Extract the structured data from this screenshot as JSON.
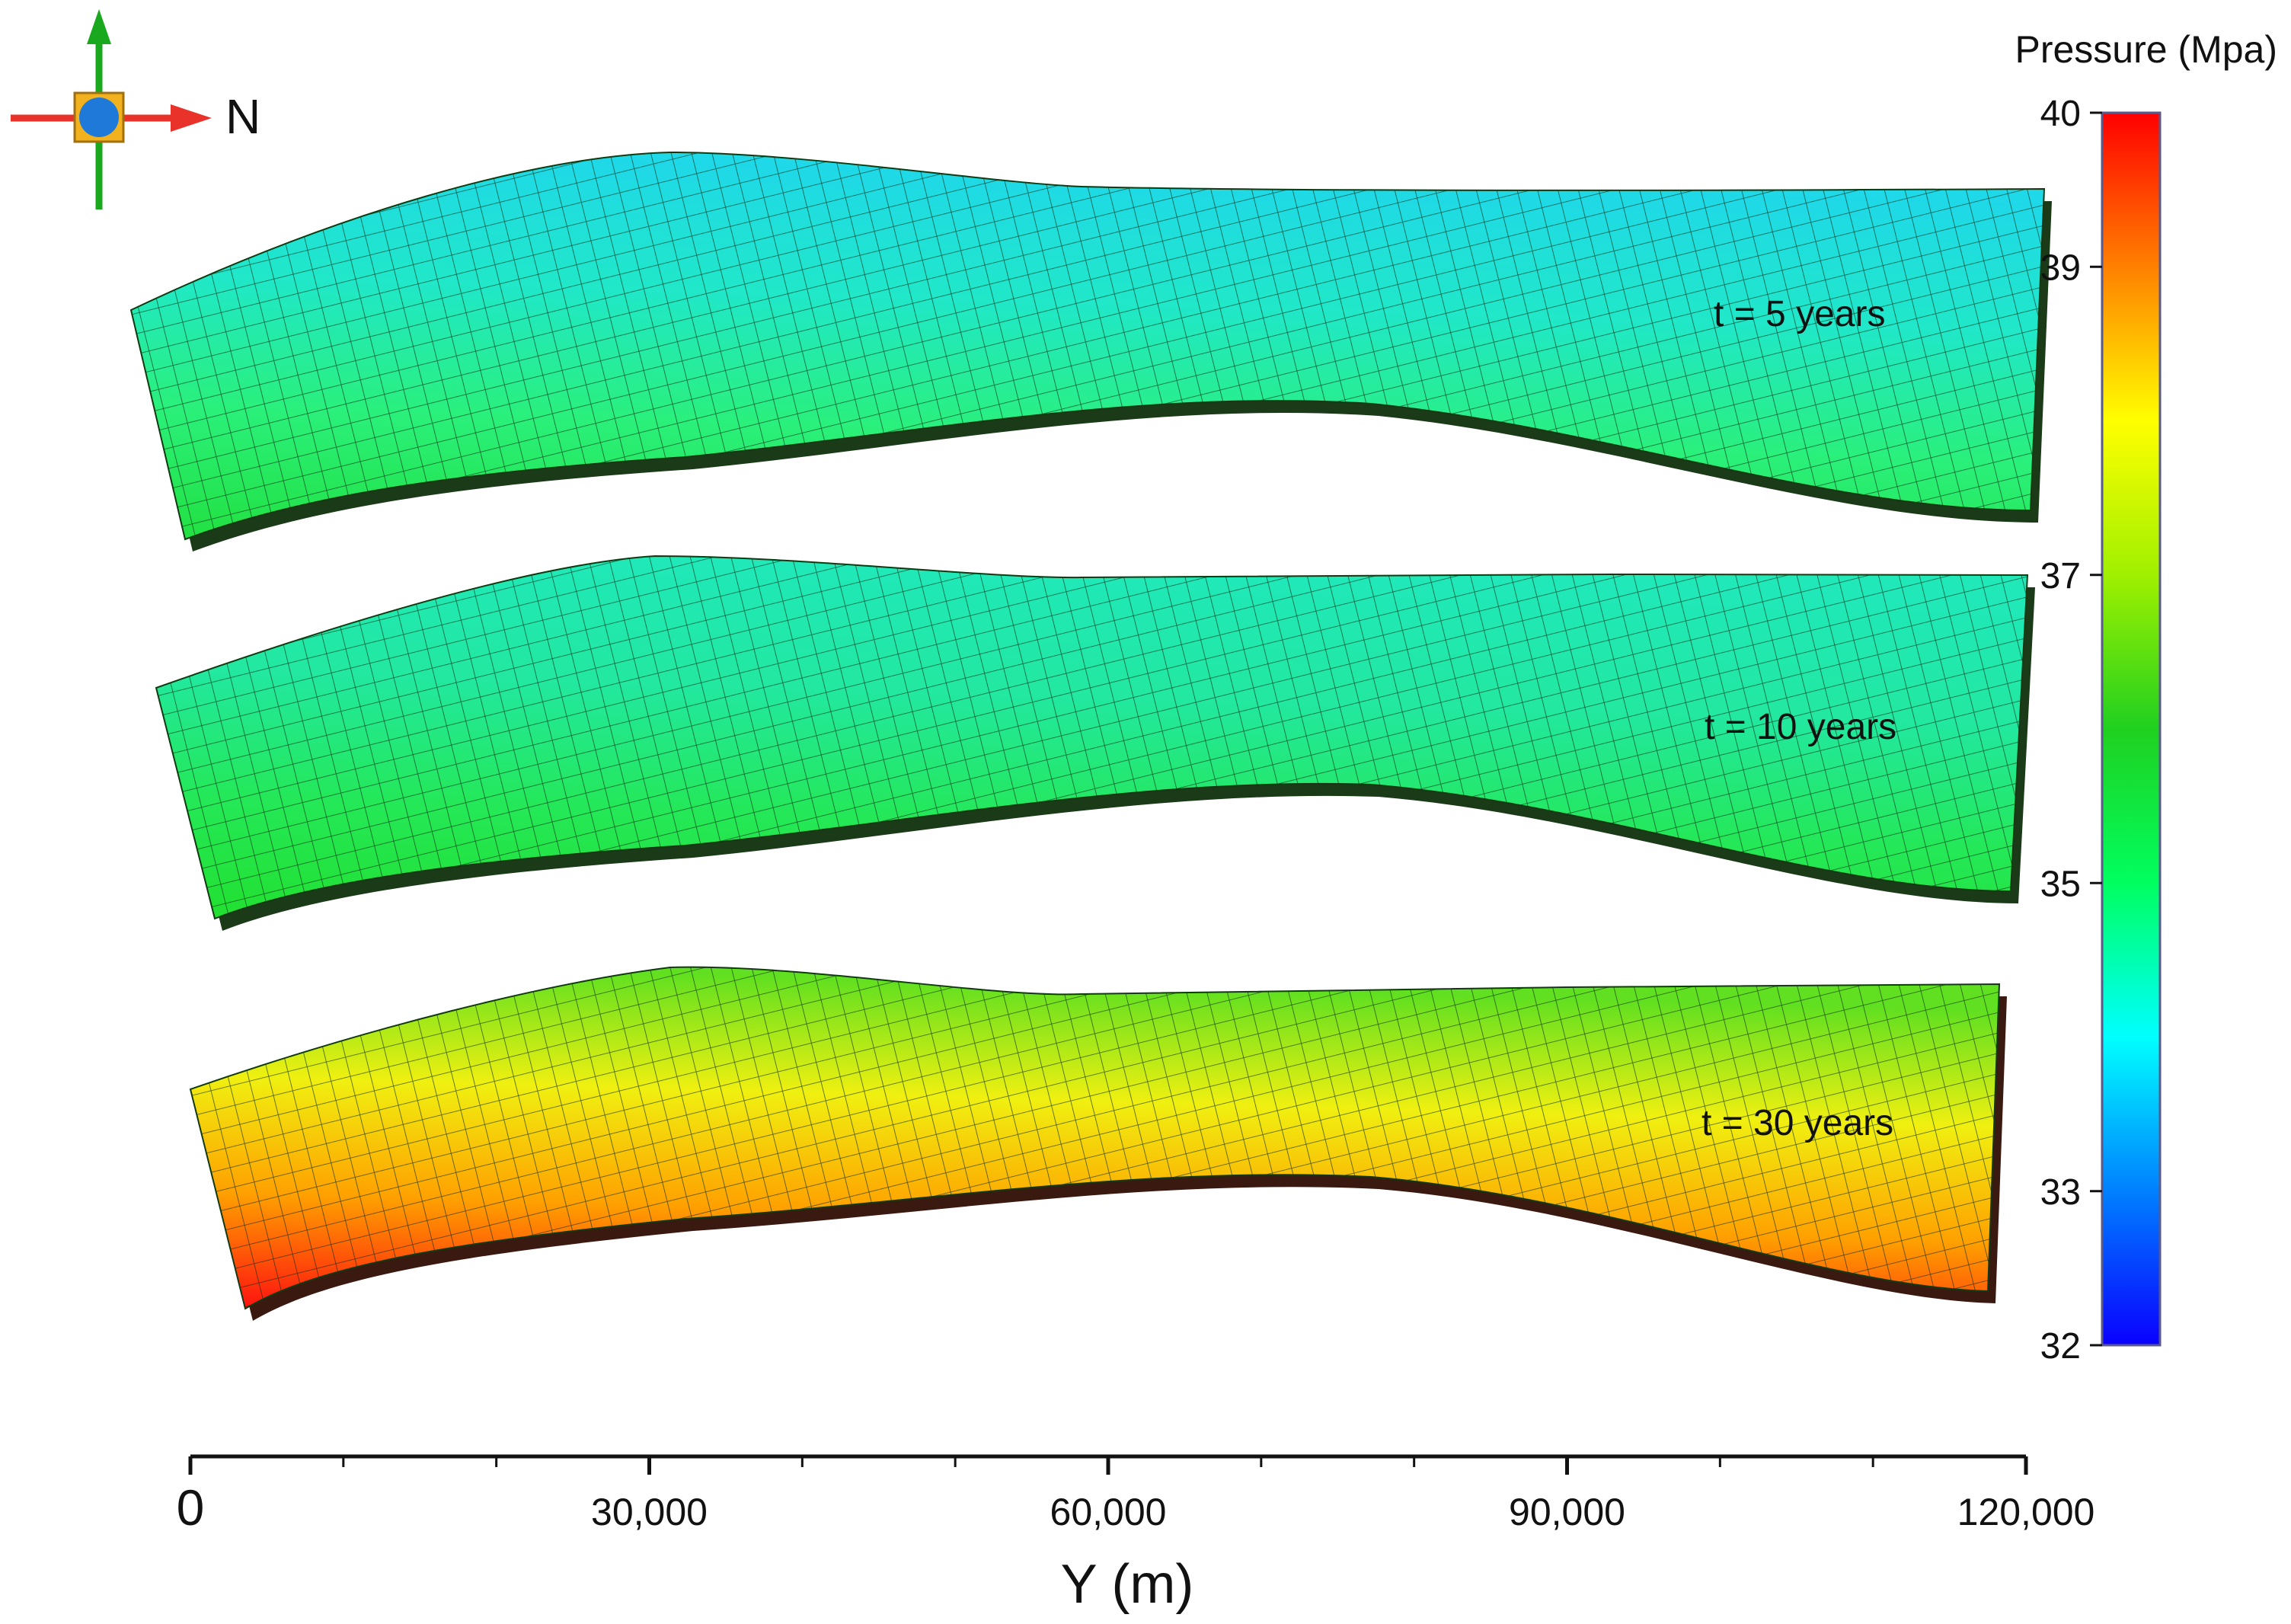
{
  "compass": {
    "north_label": "N",
    "icon": "orientation-axes-icon"
  },
  "colorbar": {
    "title": "Pressure (Mpa)",
    "min": 32,
    "max": 40,
    "ticks": [
      "40",
      "39",
      "37",
      "35",
      "33",
      "32"
    ],
    "tick_values": [
      40,
      39,
      37,
      35,
      33,
      32
    ],
    "colormap": [
      "#0a00ff",
      "#0080ff",
      "#00ffff",
      "#00ff60",
      "#20d020",
      "#a0f000",
      "#ffff00",
      "#ff8000",
      "#ff0000"
    ]
  },
  "panels": [
    {
      "label": "t = 5 years",
      "colors": [
        "#22e040",
        "#2af07a",
        "#20e8c8",
        "#1fd8e8"
      ]
    },
    {
      "label": "t = 10 years",
      "colors": [
        "#22e030",
        "#24e858",
        "#22e8a0",
        "#20e8b8"
      ]
    },
    {
      "label": "t = 30 years",
      "colors": [
        "#ff1010",
        "#ffa000",
        "#f0f010",
        "#60e020"
      ]
    }
  ],
  "axis": {
    "label": "Y (m)",
    "min": 0,
    "max": 120000,
    "tick_labels": [
      "0",
      "30,000",
      "60,000",
      "90,000",
      "120,000"
    ],
    "tick_values": [
      0,
      30000,
      60000,
      90000,
      120000
    ]
  }
}
